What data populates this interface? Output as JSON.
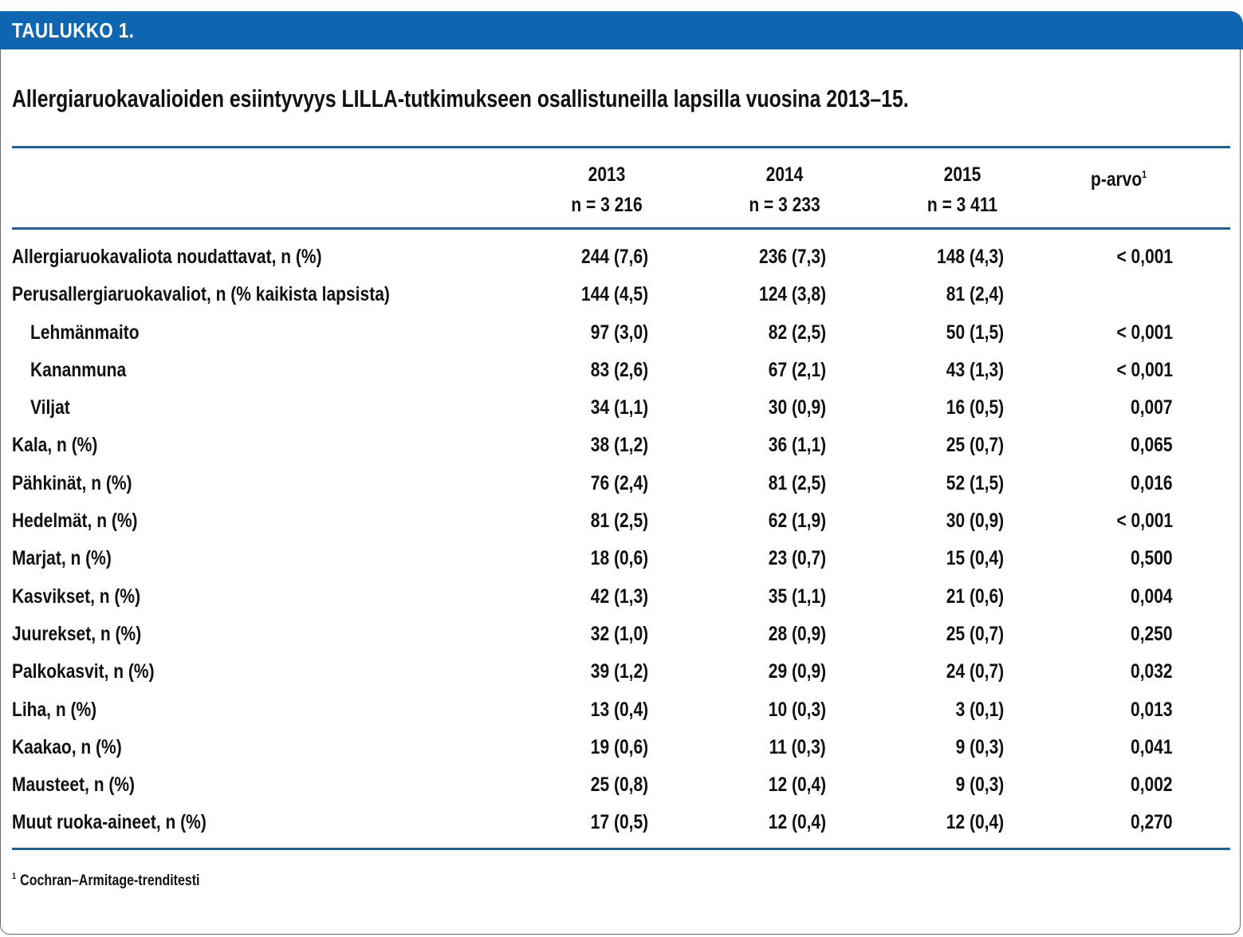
{
  "header": {
    "label": "TAULUKKO 1."
  },
  "title": "Allergiaruokavalioiden esiintyvyys LILLA-tutkimukseen osallistuneilla lapsilla vuosina 2013–15.",
  "columns": [
    {
      "year": "2013",
      "n": "n = 3 216"
    },
    {
      "year": "2014",
      "n": "n = 3 233"
    },
    {
      "year": "2015",
      "n": "n = 3 411"
    }
  ],
  "p_header": {
    "label": "p-arvo",
    "sup": "1"
  },
  "rows": [
    {
      "label": "Allergiaruokavaliota noudattavat, n (%)",
      "v2013": "244 (7,6)",
      "v2014": "236 (7,3)",
      "v2015": "148 (4,3)",
      "p": "< 0,001"
    },
    {
      "label": "Perusallergiaruokavaliot, n (% kaikista lapsista)",
      "v2013": "144 (4,5)",
      "v2014": "124 (3,8)",
      "v2015": "81 (2,4)",
      "p": ""
    },
    {
      "label": "Lehmänmaito",
      "v2013": "97 (3,0)",
      "v2014": "82 (2,5)",
      "v2015": "50 (1,5)",
      "p": "< 0,001"
    },
    {
      "label": "Kananmuna",
      "v2013": "83 (2,6)",
      "v2014": "67 (2,1)",
      "v2015": "43 (1,3)",
      "p": "< 0,001"
    },
    {
      "label": "Viljat",
      "v2013": "34 (1,1)",
      "v2014": "30 (0,9)",
      "v2015": "16 (0,5)",
      "p": "0,007"
    },
    {
      "label": "Kala, n (%)",
      "v2013": "38 (1,2)",
      "v2014": "36 (1,1)",
      "v2015": "25 (0,7)",
      "p": "0,065"
    },
    {
      "label": "Pähkinät, n (%)",
      "v2013": "76 (2,4)",
      "v2014": "81 (2,5)",
      "v2015": "52 (1,5)",
      "p": "0,016"
    },
    {
      "label": "Hedelmät, n (%)",
      "v2013": "81 (2,5)",
      "v2014": "62 (1,9)",
      "v2015": "30 (0,9)",
      "p": "< 0,001"
    },
    {
      "label": "Marjat, n (%)",
      "v2013": "18 (0,6)",
      "v2014": "23 (0,7)",
      "v2015": "15 (0,4)",
      "p": "0,500"
    },
    {
      "label": "Kasvikset, n (%)",
      "v2013": "42 (1,3)",
      "v2014": "35 (1,1)",
      "v2015": "21 (0,6)",
      "p": "0,004"
    },
    {
      "label": "Juurekset, n (%)",
      "v2013": "32 (1,0)",
      "v2014": "28 (0,9)",
      "v2015": "25 (0,7)",
      "p": "0,250"
    },
    {
      "label": "Palkokasvit, n (%)",
      "v2013": "39 (1,2)",
      "v2014": "29 (0,9)",
      "v2015": "24 (0,7)",
      "p": "0,032"
    },
    {
      "label": "Liha, n (%)",
      "v2013": "13 (0,4)",
      "v2014": "10 (0,3)",
      "v2015": "3 (0,1)",
      "p": "0,013"
    },
    {
      "label": "Kaakao, n (%)",
      "v2013": "19 (0,6)",
      "v2014": "11 (0,3)",
      "v2015": "9 (0,3)",
      "p": "0,041"
    },
    {
      "label": "Mausteet, n (%)",
      "v2013": "25 (0,8)",
      "v2014": "12 (0,4)",
      "v2015": "9 (0,3)",
      "p": "0,002"
    },
    {
      "label": "Muut ruoka-aineet, n (%)",
      "v2013": "17 (0,5)",
      "v2014": "12 (0,4)",
      "v2015": "12 (0,4)",
      "p": "0,270"
    }
  ],
  "footnote": {
    "mark": "1",
    "text": "Cochran–Armitage-trenditesti"
  },
  "colors": {
    "accent": "#0f66b0",
    "border": "#6a6a6a"
  }
}
